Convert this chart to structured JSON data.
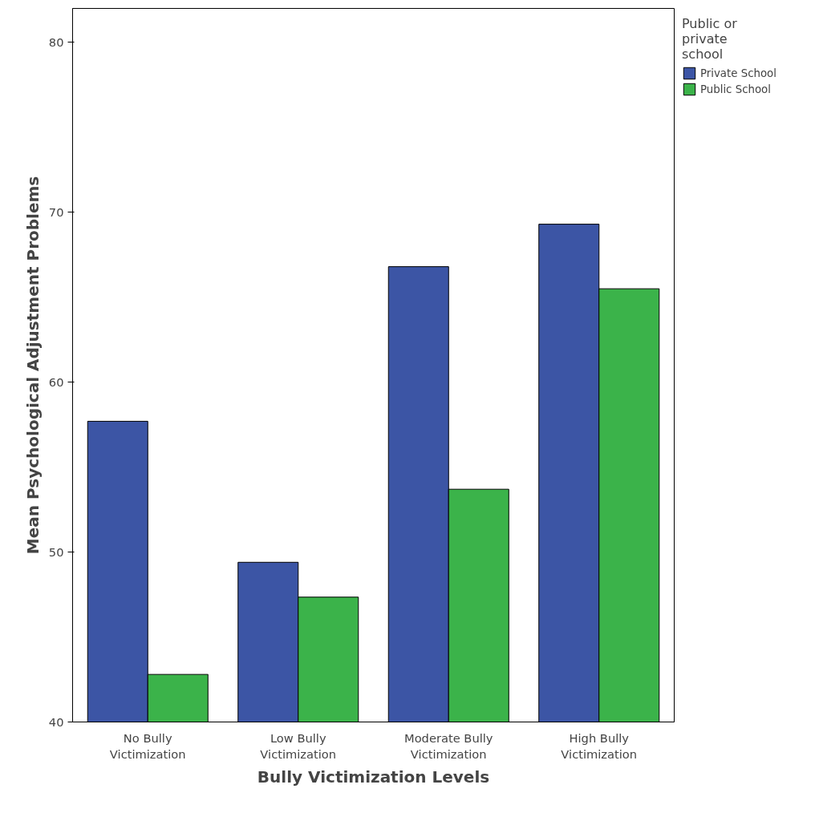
{
  "chart_data": {
    "type": "bar",
    "xlabel": "Bully Victimization Levels",
    "ylabel": "Mean Psychological Adjustment Problems",
    "legend_title": "Public or\nprivate\nschool",
    "categories": [
      "No Bully\nVictimization",
      "Low Bully\nVictimization",
      "Moderate Bully\nVictimization",
      "High Bully\nVictimization"
    ],
    "series": [
      {
        "name": "Private School",
        "color": "#3c55a5",
        "values": [
          57.7,
          49.4,
          66.8,
          69.3
        ]
      },
      {
        "name": "Public School",
        "color": "#3bb34a",
        "values": [
          42.8,
          47.35,
          53.7,
          65.5
        ]
      }
    ],
    "ylim": [
      40,
      82
    ],
    "yticks": [
      40,
      50,
      60,
      70,
      80
    ],
    "grid": false,
    "legend": "top right"
  }
}
